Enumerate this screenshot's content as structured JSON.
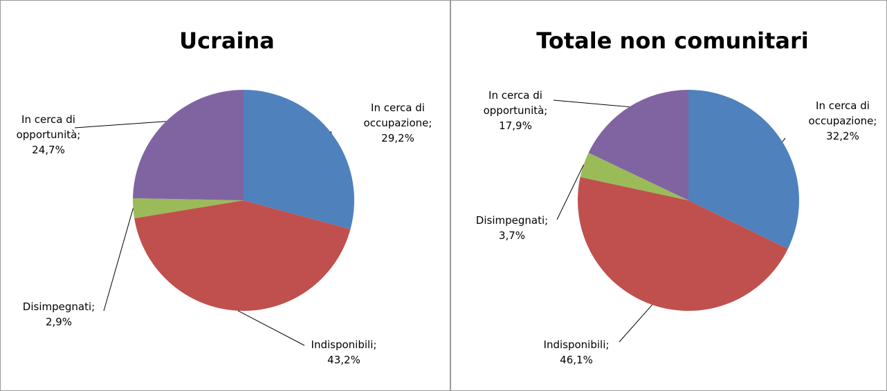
{
  "chart_data": [
    {
      "type": "pie",
      "title": "Ucraina",
      "categories": [
        "In cerca di occupazione;",
        "Indisponibili;",
        "Disimpegnati;",
        "In cerca di opportunità;"
      ],
      "values": [
        29.2,
        43.2,
        2.9,
        24.7
      ],
      "value_labels": [
        "29,2%",
        "43,2%",
        "2,9%",
        "24,7%"
      ],
      "colors": [
        "#4f81bd",
        "#c0504d",
        "#9bbb59",
        "#8064a2"
      ]
    },
    {
      "type": "pie",
      "title": "Totale non comunitari",
      "categories": [
        "In cerca di occupazione;",
        "Indisponibili;",
        "Disimpegnati;",
        "In cerca di opportunità;"
      ],
      "values": [
        32.2,
        46.1,
        3.7,
        17.9
      ],
      "value_labels": [
        "32,2%",
        "46,1%",
        "3,7%",
        "17,9%"
      ],
      "colors": [
        "#4f81bd",
        "#c0504d",
        "#9bbb59",
        "#8064a2"
      ]
    }
  ]
}
